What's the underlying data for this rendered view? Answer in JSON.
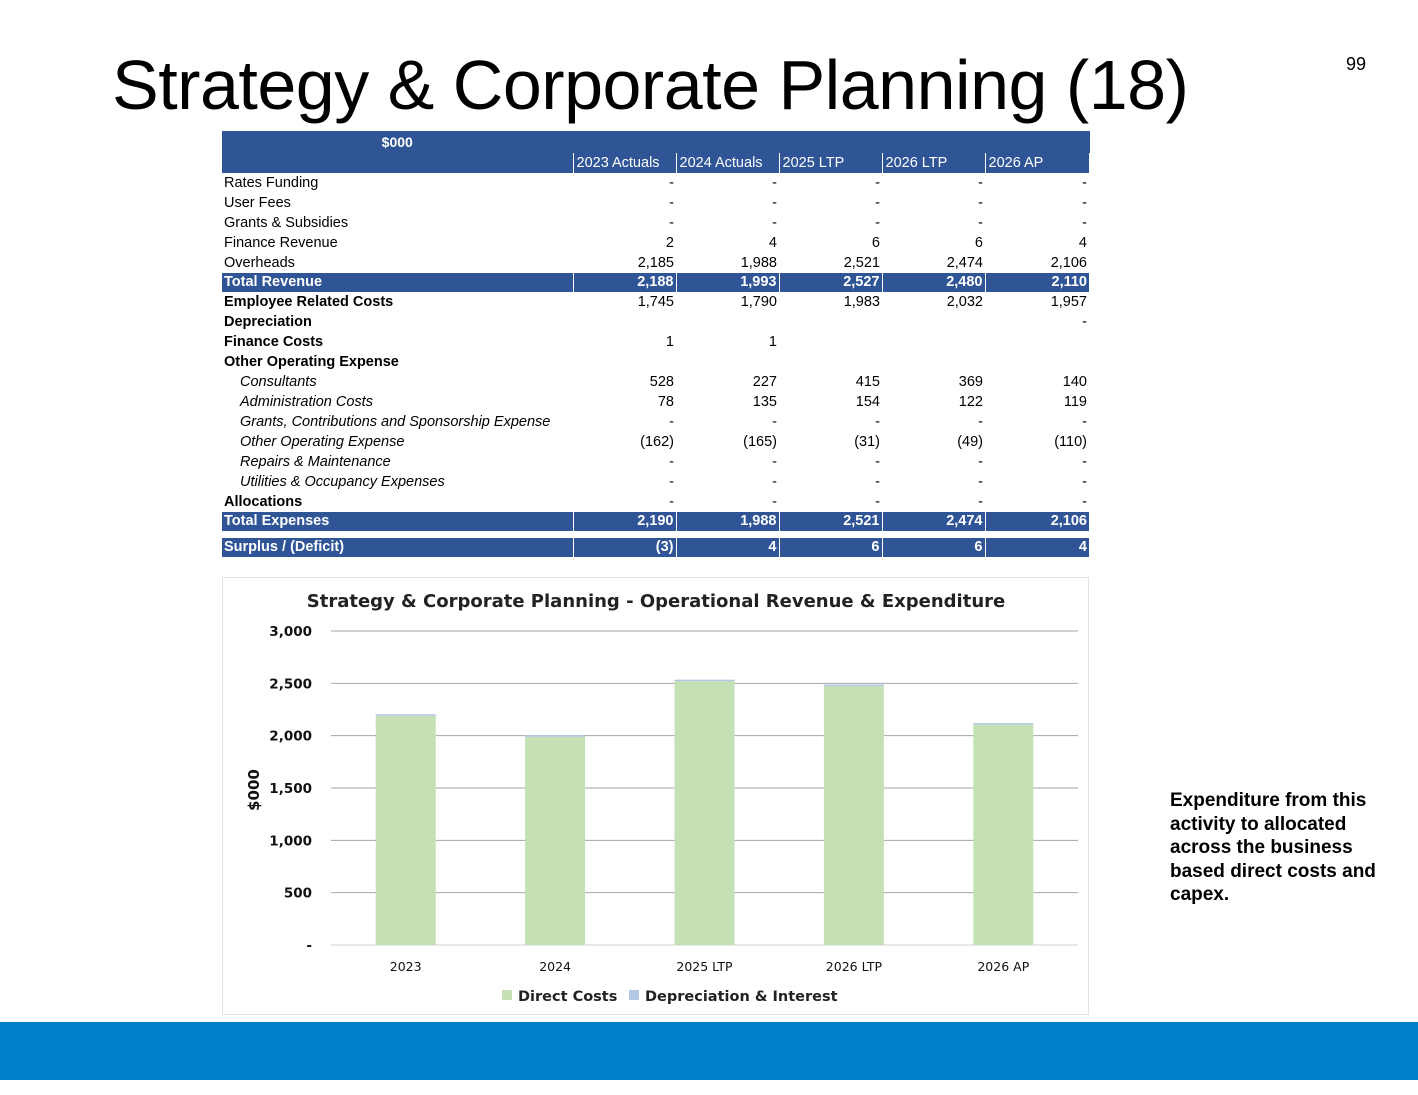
{
  "slide": {
    "title": "Strategy & Corporate Planning (18)",
    "page_number": "99",
    "side_note": "Expenditure from this activity to allocated across the business based direct costs and capex."
  },
  "table": {
    "unit_label": "$000",
    "columns": [
      "2023 Actuals",
      "2024 Actuals",
      "2025 LTP",
      "2026 LTP",
      "2026 AP"
    ],
    "rows": [
      {
        "label": "Rates Funding",
        "style": "normal",
        "values": [
          "-",
          "-",
          "-",
          "-",
          "-"
        ]
      },
      {
        "label": "User Fees",
        "style": "normal",
        "values": [
          "-",
          "-",
          "-",
          "-",
          "-"
        ]
      },
      {
        "label": "Grants & Subsidies",
        "style": "normal",
        "values": [
          "-",
          "-",
          "-",
          "-",
          "-"
        ]
      },
      {
        "label": "Finance Revenue",
        "style": "normal",
        "values": [
          "2",
          "4",
          "6",
          "6",
          "4"
        ]
      },
      {
        "label": "Overheads",
        "style": "normal",
        "values": [
          "2,185",
          "1,988",
          "2,521",
          "2,474",
          "2,106"
        ]
      },
      {
        "label": "Total Revenue",
        "style": "total",
        "values": [
          "2,188",
          "1,993",
          "2,527",
          "2,480",
          "2,110"
        ]
      },
      {
        "label": "Employee Related Costs",
        "style": "bold",
        "values": [
          "1,745",
          "1,790",
          "1,983",
          "2,032",
          "1,957"
        ]
      },
      {
        "label": "Depreciation",
        "style": "bold",
        "values": [
          "",
          "",
          "",
          "",
          "-"
        ]
      },
      {
        "label": "Finance Costs",
        "style": "bold",
        "values": [
          "1",
          "1",
          "",
          "",
          ""
        ]
      },
      {
        "label": "Other Operating  Expense",
        "style": "bold",
        "values": [
          "",
          "",
          "",
          "",
          ""
        ]
      },
      {
        "label": "Consultants",
        "style": "sub",
        "values": [
          "528",
          "227",
          "415",
          "369",
          "140"
        ]
      },
      {
        "label": "Administration Costs",
        "style": "sub",
        "values": [
          "78",
          "135",
          "154",
          "122",
          "119"
        ]
      },
      {
        "label": "Grants, Contributions and Sponsorship Expense",
        "style": "sub",
        "values": [
          "-",
          "-",
          "-",
          "-",
          "-"
        ]
      },
      {
        "label": "Other Operating Expense",
        "style": "sub",
        "values": [
          "(162)",
          "(165)",
          "(31)",
          "(49)",
          "(110)"
        ]
      },
      {
        "label": "Repairs & Maintenance",
        "style": "sub",
        "values": [
          "-",
          "-",
          "-",
          "-",
          "-"
        ]
      },
      {
        "label": "Utilities & Occupancy Expenses",
        "style": "sub",
        "values": [
          "-",
          "-",
          "-",
          "-",
          "-"
        ]
      },
      {
        "label": "Allocations",
        "style": "bold",
        "values": [
          "-",
          "-",
          "-",
          "-",
          "-"
        ]
      },
      {
        "label": "Total Expenses",
        "style": "total",
        "values": [
          "2,190",
          "1,988",
          "2,521",
          "2,474",
          "2,106"
        ]
      },
      {
        "label": "",
        "style": "gap",
        "values": [
          "",
          "",
          "",
          "",
          ""
        ]
      },
      {
        "label": "Surplus / (Deficit)",
        "style": "total",
        "values": [
          "(3)",
          "4",
          "6",
          "6",
          "4"
        ]
      }
    ]
  },
  "chart_data": {
    "type": "bar",
    "stacked": true,
    "title": "Strategy & Corporate Planning - Operational Revenue & Expenditure",
    "xlabel": "",
    "ylabel": "$000",
    "categories": [
      "2023",
      "2024",
      "2025 LTP",
      "2026 LTP",
      "2026 AP"
    ],
    "ylim": [
      0,
      3000
    ],
    "yticks": [
      0,
      500,
      1000,
      1500,
      2000,
      2500,
      3000
    ],
    "ytick_labels": [
      "-",
      "500",
      "1,000",
      "1,500",
      "2,000",
      "2,500",
      "3,000"
    ],
    "grid": true,
    "legend_position": "bottom",
    "series": [
      {
        "name": "Direct Costs",
        "color": "#c5e0b4",
        "values": [
          2189,
          1988,
          2521,
          2474,
          2106
        ]
      },
      {
        "name": "Depreciation & Interest",
        "color": "#b4c7e7",
        "values": [
          1,
          1,
          0,
          0,
          0
        ]
      }
    ]
  }
}
